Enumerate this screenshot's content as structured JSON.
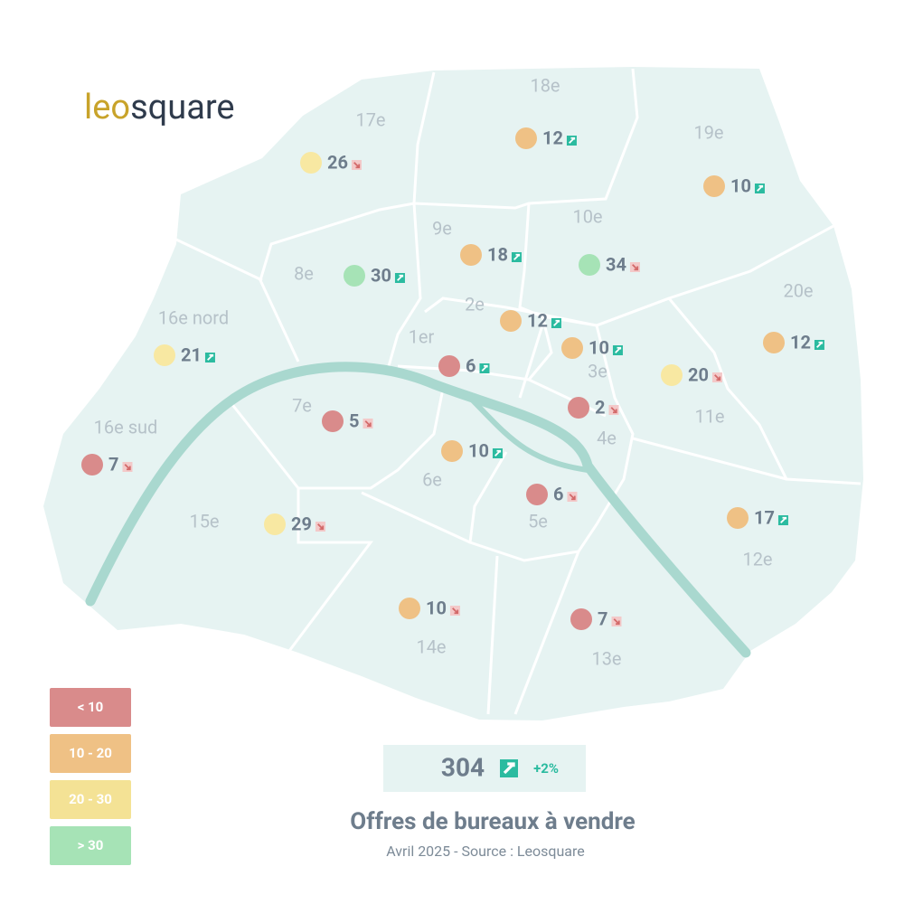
{
  "logo": {
    "part1": "leo",
    "part2": "square"
  },
  "districts": [
    {
      "name": "18e",
      "value": 12,
      "trend": "up",
      "color": "#efc185"
    },
    {
      "name": "17e",
      "value": 26,
      "trend": "down",
      "color": "#f8e8a2"
    },
    {
      "name": "19e",
      "value": 10,
      "trend": "up",
      "color": "#efc185"
    },
    {
      "name": "9e",
      "value": 18,
      "trend": "up",
      "color": "#efc185"
    },
    {
      "name": "10e",
      "value": 34,
      "trend": "down",
      "color": "#a6e3b6"
    },
    {
      "name": "8e",
      "value": 30,
      "trend": "up",
      "color": "#a6e3b6"
    },
    {
      "name": "20e",
      "value": 12,
      "trend": "up",
      "color": "#efc185"
    },
    {
      "name": "2e",
      "value": 12,
      "trend": "up",
      "color": "#efc185"
    },
    {
      "name": "16e nord",
      "value": 21,
      "trend": "up",
      "color": "#f8e8a2"
    },
    {
      "name": "1er",
      "value": 6,
      "trend": "up",
      "color": "#d98b8b"
    },
    {
      "name": "3e",
      "value": 10,
      "trend": "up",
      "color": "#efc185"
    },
    {
      "name": "11e",
      "value": 20,
      "trend": "down",
      "color": "#f8e8a2"
    },
    {
      "name": "4e",
      "value": 2,
      "trend": "down",
      "color": "#d98b8b"
    },
    {
      "name": "7e",
      "value": 5,
      "trend": "down",
      "color": "#d98b8b"
    },
    {
      "name": "16e sud",
      "value": 7,
      "trend": "down",
      "color": "#d98b8b"
    },
    {
      "name": "6e",
      "value": 10,
      "trend": "up",
      "color": "#efc185"
    },
    {
      "name": "5e",
      "value": 6,
      "trend": "down",
      "color": "#d98b8b"
    },
    {
      "name": "15e",
      "value": 29,
      "trend": "down",
      "color": "#f8e8a2"
    },
    {
      "name": "12e",
      "value": 17,
      "trend": "up",
      "color": "#efc185"
    },
    {
      "name": "14e",
      "value": 10,
      "trend": "down",
      "color": "#efc185"
    },
    {
      "name": "13e",
      "value": 7,
      "trend": "down",
      "color": "#d98b8b"
    }
  ],
  "legend": [
    {
      "label": "< 10",
      "color": "#d98b8b"
    },
    {
      "label": "10 - 20",
      "color": "#efc185"
    },
    {
      "label": "20 - 30",
      "color": "#f4e295"
    },
    {
      "label": "> 30",
      "color": "#a6e3b6"
    }
  ],
  "total": {
    "value": 304,
    "trend": "up",
    "change": "+2%"
  },
  "title": "Offres de bureaux à vendre",
  "subtitle": "Avril 2025 - Source : Leosquare"
}
